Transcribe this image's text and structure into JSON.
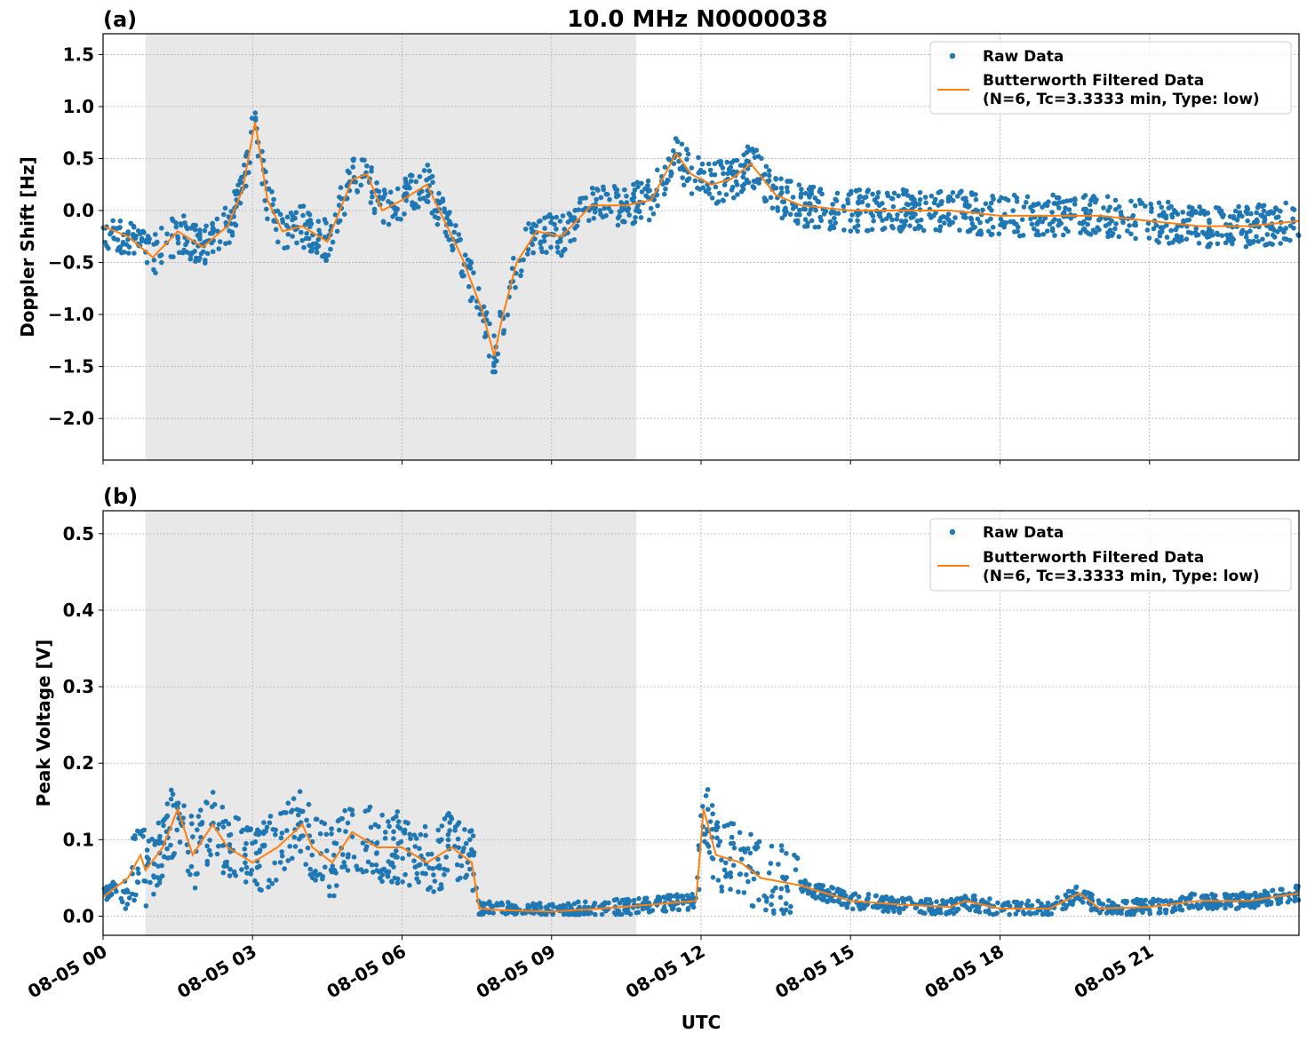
{
  "figure": {
    "title": "10.0 MHz N0000038",
    "xlabel": "UTC",
    "x_ticks": [
      "08-05 00",
      "08-05 03",
      "08-05 06",
      "08-05 09",
      "08-05 12",
      "08-05 15",
      "08-05 18",
      "08-05 21"
    ],
    "x_range_hours": [
      0,
      24
    ],
    "shaded_interval_hours": [
      0.85,
      10.7
    ],
    "colors": {
      "raw": "#1f77b4",
      "filtered": "#ff7f0e",
      "shade": "#e8e8e8",
      "grid": "#b0b0b0"
    }
  },
  "legend": {
    "raw": "Raw Data",
    "filtered_line1": "Butterworth Filtered Data",
    "filtered_line2": "(N=6, Tc=3.3333 min, Type: low)"
  },
  "chart_data": [
    {
      "type": "scatter",
      "panel_label": "(a)",
      "title": "10.0 MHz N0000038",
      "xlabel": "",
      "ylabel": "Doppler Shift [Hz]",
      "ylim": [
        -2.4,
        1.7
      ],
      "yticks": [
        1.5,
        1.0,
        0.5,
        0.0,
        -0.5,
        -1.0,
        -1.5,
        -2.0
      ],
      "ytick_labels": [
        "1.5",
        "1.0",
        "0.5",
        "0.0",
        "−0.5",
        "−1.0",
        "−1.5",
        "−2.0"
      ],
      "grid": true,
      "legend_position": "top-right",
      "series": [
        {
          "name": "Butterworth Filtered Data",
          "x_hours": [
            0,
            0.5,
            1.0,
            1.5,
            2.0,
            2.5,
            2.8,
            3.05,
            3.3,
            3.6,
            4.0,
            4.5,
            5.0,
            5.3,
            5.6,
            6.0,
            6.5,
            6.8,
            7.2,
            7.6,
            7.85,
            8.0,
            8.3,
            8.7,
            9.2,
            9.8,
            10.5,
            11.0,
            11.5,
            11.8,
            12.2,
            12.6,
            13.0,
            13.5,
            14.0,
            15.0,
            16.0,
            17.0,
            18.0,
            19.0,
            20.0,
            21.0,
            22.0,
            23.0,
            24.0
          ],
          "y": [
            -0.15,
            -0.25,
            -0.45,
            -0.2,
            -0.35,
            -0.15,
            0.2,
            0.85,
            0.1,
            -0.2,
            -0.15,
            -0.3,
            0.3,
            0.35,
            0.0,
            0.1,
            0.25,
            -0.05,
            -0.45,
            -0.95,
            -1.4,
            -1.05,
            -0.5,
            -0.2,
            -0.25,
            0.05,
            0.05,
            0.1,
            0.55,
            0.35,
            0.25,
            0.3,
            0.45,
            0.15,
            0.05,
            0.0,
            0.0,
            0.0,
            -0.05,
            -0.05,
            -0.05,
            -0.1,
            -0.15,
            -0.15,
            -0.1
          ]
        },
        {
          "name": "Raw Data",
          "spread_hz": 0.2
        }
      ]
    },
    {
      "type": "scatter",
      "panel_label": "(b)",
      "title": "",
      "xlabel": "UTC",
      "ylabel": "Peak Voltage [V]",
      "ylim": [
        -0.025,
        0.53
      ],
      "yticks": [
        0.5,
        0.4,
        0.3,
        0.2,
        0.1,
        0.0
      ],
      "ytick_labels": [
        "0.5",
        "0.4",
        "0.3",
        "0.2",
        "0.1",
        "0.0"
      ],
      "grid": true,
      "legend_position": "top-right",
      "series": [
        {
          "name": "Butterworth Filtered Data",
          "x_hours": [
            0,
            0.5,
            0.75,
            0.85,
            1.2,
            1.5,
            1.8,
            2.2,
            2.5,
            3.0,
            3.5,
            4.0,
            4.2,
            4.6,
            5.0,
            5.5,
            6.0,
            6.5,
            7.0,
            7.4,
            7.55,
            8.0,
            9.0,
            10.0,
            11.0,
            11.9,
            12.05,
            12.3,
            12.8,
            13.2,
            14.0,
            15.0,
            16.0,
            17.0,
            17.3,
            18.0,
            19.0,
            19.6,
            20.0,
            21.0,
            22.0,
            23.0,
            24.0
          ],
          "y": [
            0.025,
            0.05,
            0.08,
            0.06,
            0.09,
            0.14,
            0.08,
            0.12,
            0.09,
            0.07,
            0.09,
            0.12,
            0.09,
            0.07,
            0.11,
            0.09,
            0.09,
            0.07,
            0.09,
            0.07,
            0.01,
            0.008,
            0.006,
            0.01,
            0.015,
            0.02,
            0.14,
            0.08,
            0.07,
            0.05,
            0.04,
            0.02,
            0.015,
            0.012,
            0.02,
            0.01,
            0.01,
            0.03,
            0.01,
            0.012,
            0.02,
            0.02,
            0.03
          ]
        },
        {
          "name": "Raw Data",
          "spread_v": 0.03
        }
      ]
    }
  ]
}
